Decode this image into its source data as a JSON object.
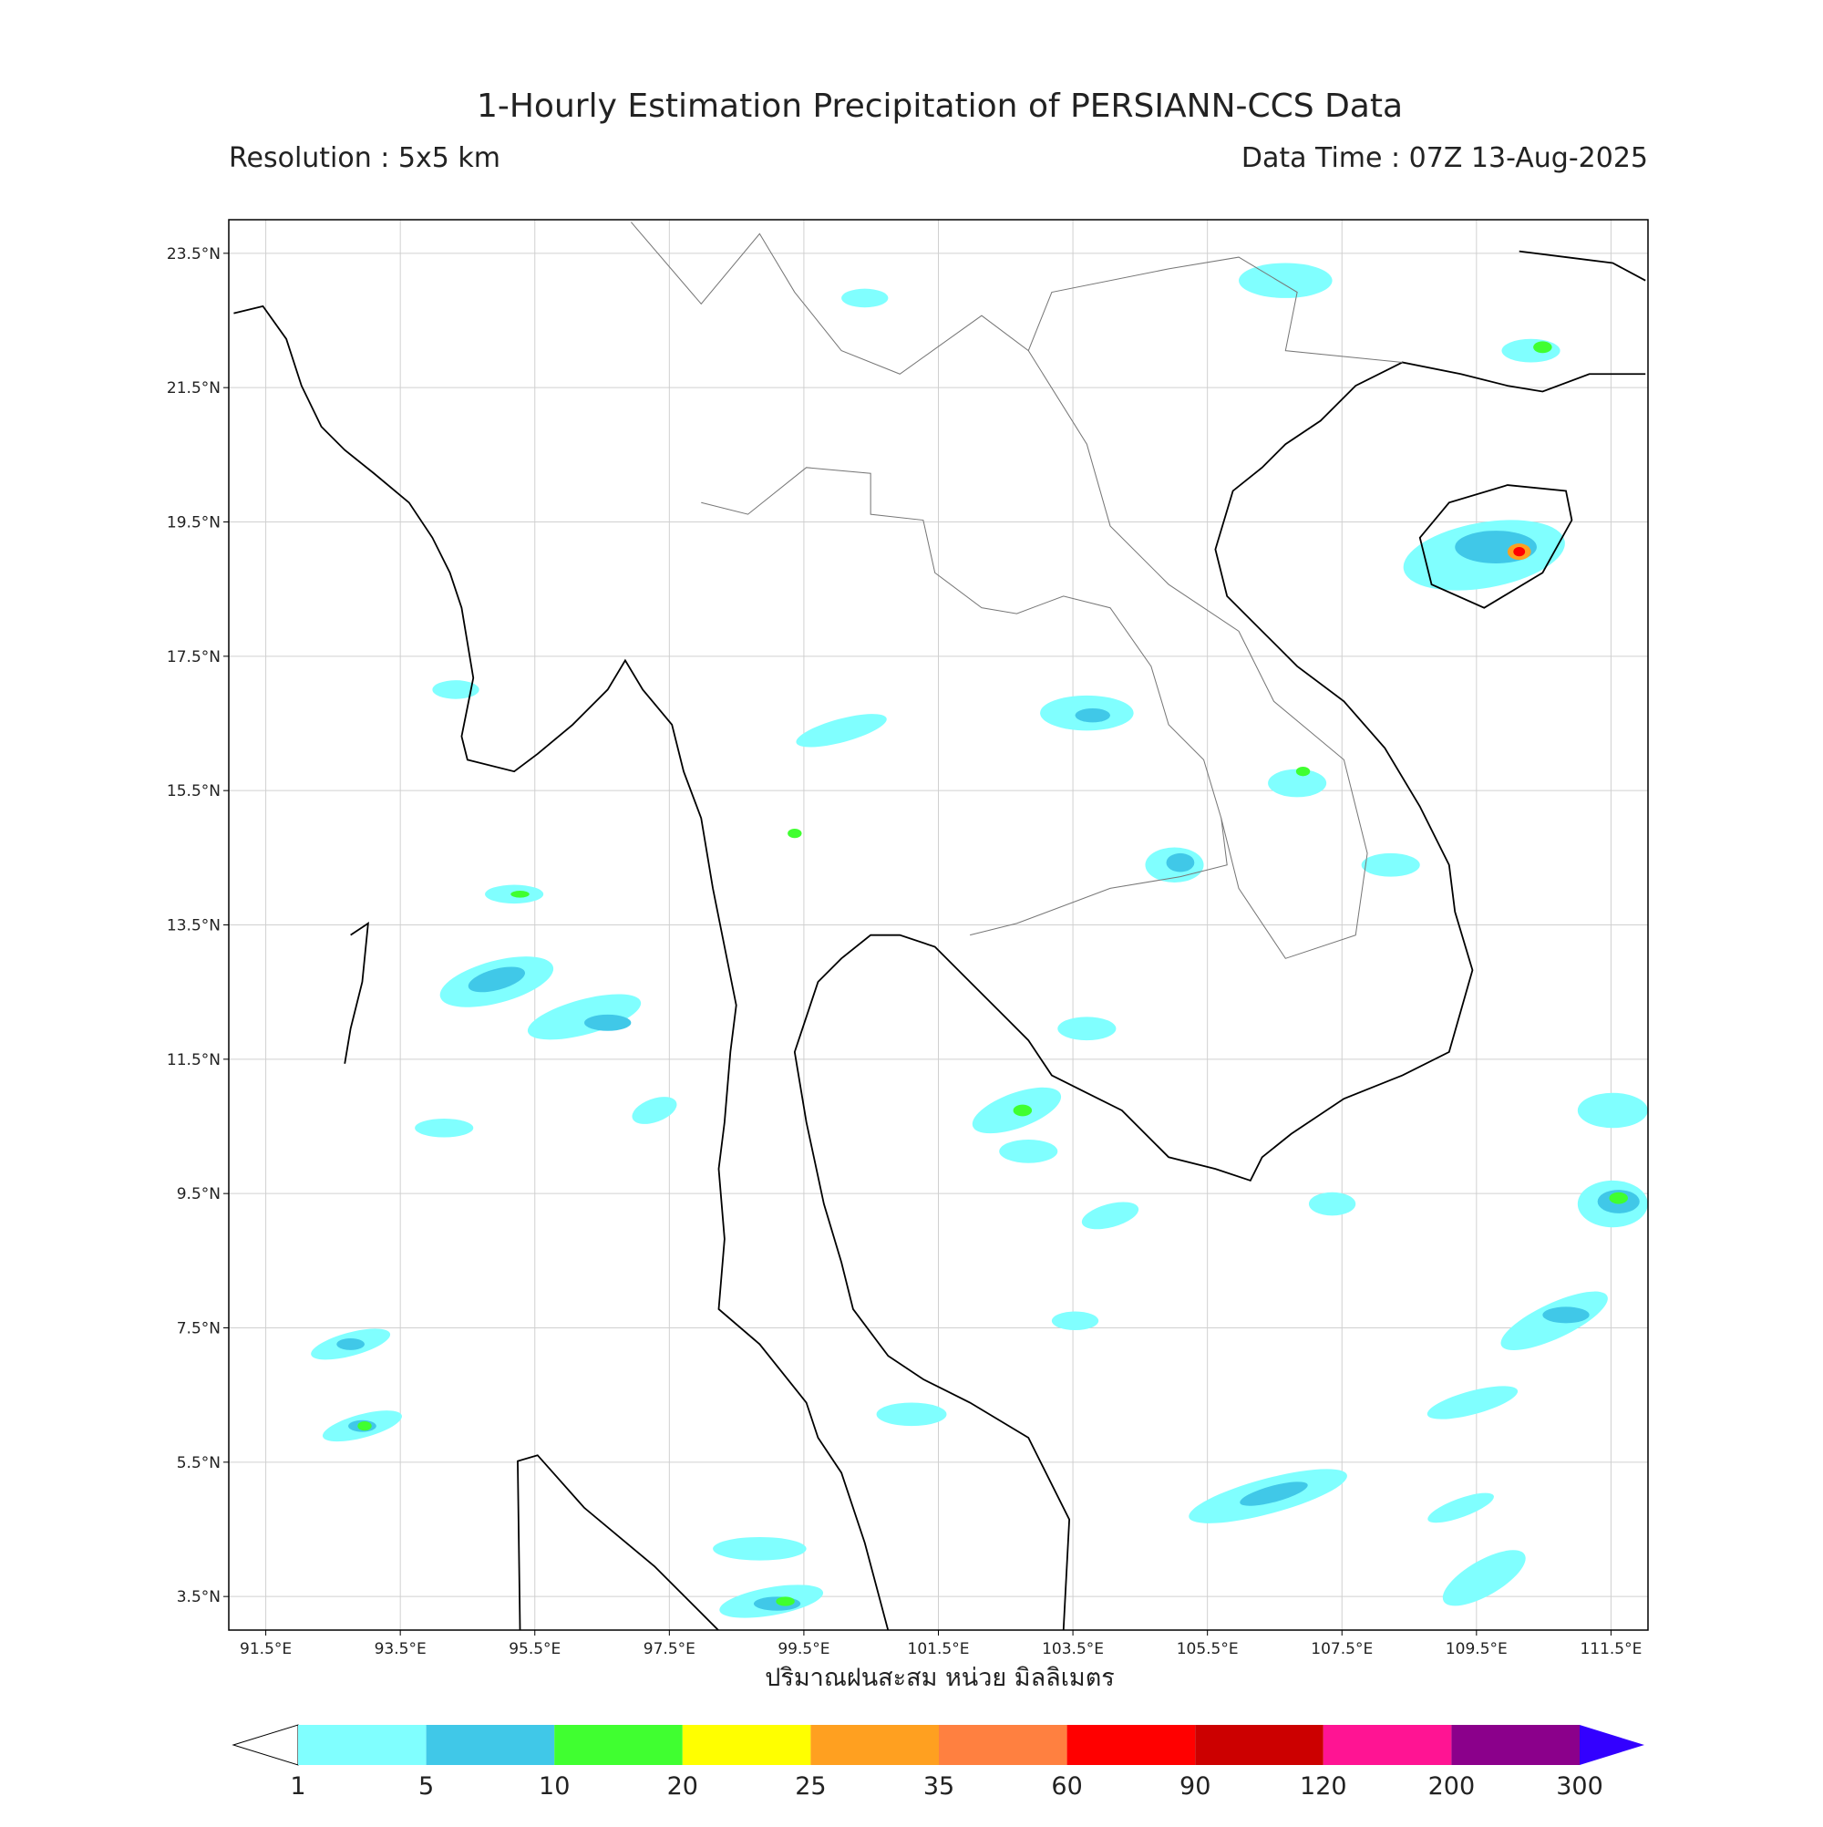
{
  "header": {
    "title": "1-Hourly Estimation Precipitation of PERSIANN-CCS Data",
    "resolution": "Resolution : 5x5 km",
    "data_time": "Data Time : 07Z 13-Aug-2025"
  },
  "map": {
    "xlim": [
      90.95,
      112.05
    ],
    "ylim": [
      3,
      24
    ],
    "grid": true,
    "lat_ticks": [
      {
        "value": 23.5,
        "label": "23.5°N"
      },
      {
        "value": 21.5,
        "label": "21.5°N"
      },
      {
        "value": 19.5,
        "label": "19.5°N"
      },
      {
        "value": 17.5,
        "label": "17.5°N"
      },
      {
        "value": 15.5,
        "label": "15.5°N"
      },
      {
        "value": 13.5,
        "label": "13.5°N"
      },
      {
        "value": 11.5,
        "label": "11.5°N"
      },
      {
        "value": 9.5,
        "label": "9.5°N"
      },
      {
        "value": 7.5,
        "label": "7.5°N"
      },
      {
        "value": 5.5,
        "label": "5.5°N"
      },
      {
        "value": 3.5,
        "label": "3.5°N"
      }
    ],
    "lon_ticks": [
      {
        "value": 91.5,
        "label": "91.5°E"
      },
      {
        "value": 93.5,
        "label": "93.5°E"
      },
      {
        "value": 95.5,
        "label": "95.5°E"
      },
      {
        "value": 97.5,
        "label": "97.5°E"
      },
      {
        "value": 99.5,
        "label": "99.5°E"
      },
      {
        "value": 101.5,
        "label": "101.5°E"
      },
      {
        "value": 103.5,
        "label": "103.5°E"
      },
      {
        "value": 105.5,
        "label": "105.5°E"
      },
      {
        "value": 107.5,
        "label": "107.5°E"
      },
      {
        "value": 109.5,
        "label": "109.5°E"
      },
      {
        "value": 111.5,
        "label": "111.5°E"
      }
    ],
    "x_label": "ปริมาณฝนสะสม หน่วย มิลลิเมตร"
  },
  "colorbar": {
    "levels": [
      1,
      5,
      10,
      20,
      25,
      35,
      60,
      90,
      120,
      200,
      300
    ],
    "colors": [
      "#80ffff",
      "#40c8e8",
      "#40ff30",
      "#ffff00",
      "#ffa020",
      "#ff8040",
      "#ff0000",
      "#cc0000",
      "#ff1493",
      "#8b008b"
    ],
    "under_color": "#ffffff",
    "over_color": "#3300ff"
  }
}
